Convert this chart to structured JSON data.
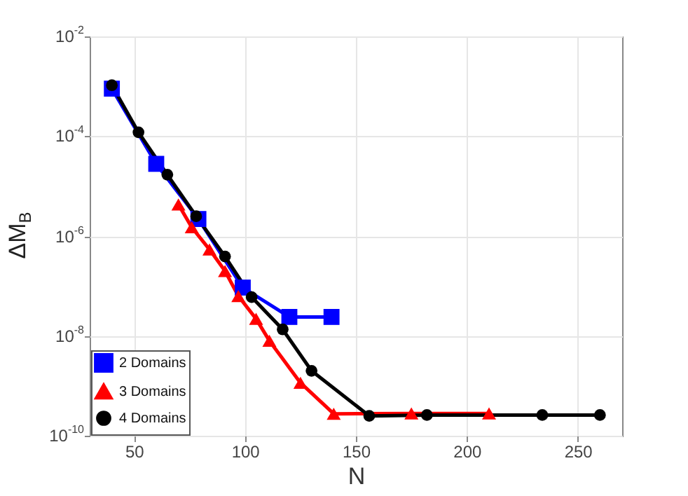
{
  "chart_data": {
    "type": "line",
    "xlabel": "N",
    "ylabel": "ΔM$_{B}$",
    "log": "y",
    "grid": true,
    "legend": "bottom left",
    "xlim": [
      30,
      270
    ],
    "xticks": [
      50,
      100,
      150,
      200,
      250
    ],
    "ylim": [
      1e-10,
      0.01
    ],
    "yticks": [
      {
        "value": 1e-10,
        "label": "10$^{-10}$"
      },
      {
        "value": 1e-08,
        "label": "10$^{-8}$"
      },
      {
        "value": 1e-06,
        "label": "10$^{-6}$"
      },
      {
        "value": 0.0001,
        "label": "10$^{-4}$"
      },
      {
        "value": 0.01,
        "label": "10$^{-2}$"
      }
    ],
    "series": [
      {
        "name": "2 Domains",
        "color": "#0000ff",
        "marker": "square",
        "x": [
          40,
          60,
          79,
          99,
          120,
          139
        ],
        "values": [
          0.0009,
          2.8e-05,
          2.2e-06,
          9.3e-08,
          2.4e-08,
          2.4e-08
        ]
      },
      {
        "name": "3 Domains",
        "color": "#ff0000",
        "marker": "triangle",
        "x": [
          70,
          76,
          84,
          91,
          97,
          105,
          111,
          125,
          140,
          175,
          210
        ],
        "values": [
          4.3e-06,
          1.5e-06,
          5.4e-07,
          2e-07,
          6.3e-08,
          2.2e-08,
          8e-09,
          1.15e-09,
          2.75e-10,
          2.8e-10,
          2.8e-10
        ]
      },
      {
        "name": "4 Domains",
        "color": "#000000",
        "marker": "circle",
        "x": [
          40,
          52,
          65,
          78,
          91,
          103,
          117,
          130,
          156,
          182,
          234,
          260
        ],
        "values": [
          0.00105,
          0.00012,
          1.7e-05,
          2.5e-06,
          3.9e-07,
          6e-08,
          1.35e-08,
          2e-09,
          2.5e-10,
          2.6e-10,
          2.6e-10,
          2.6e-10
        ]
      }
    ]
  }
}
